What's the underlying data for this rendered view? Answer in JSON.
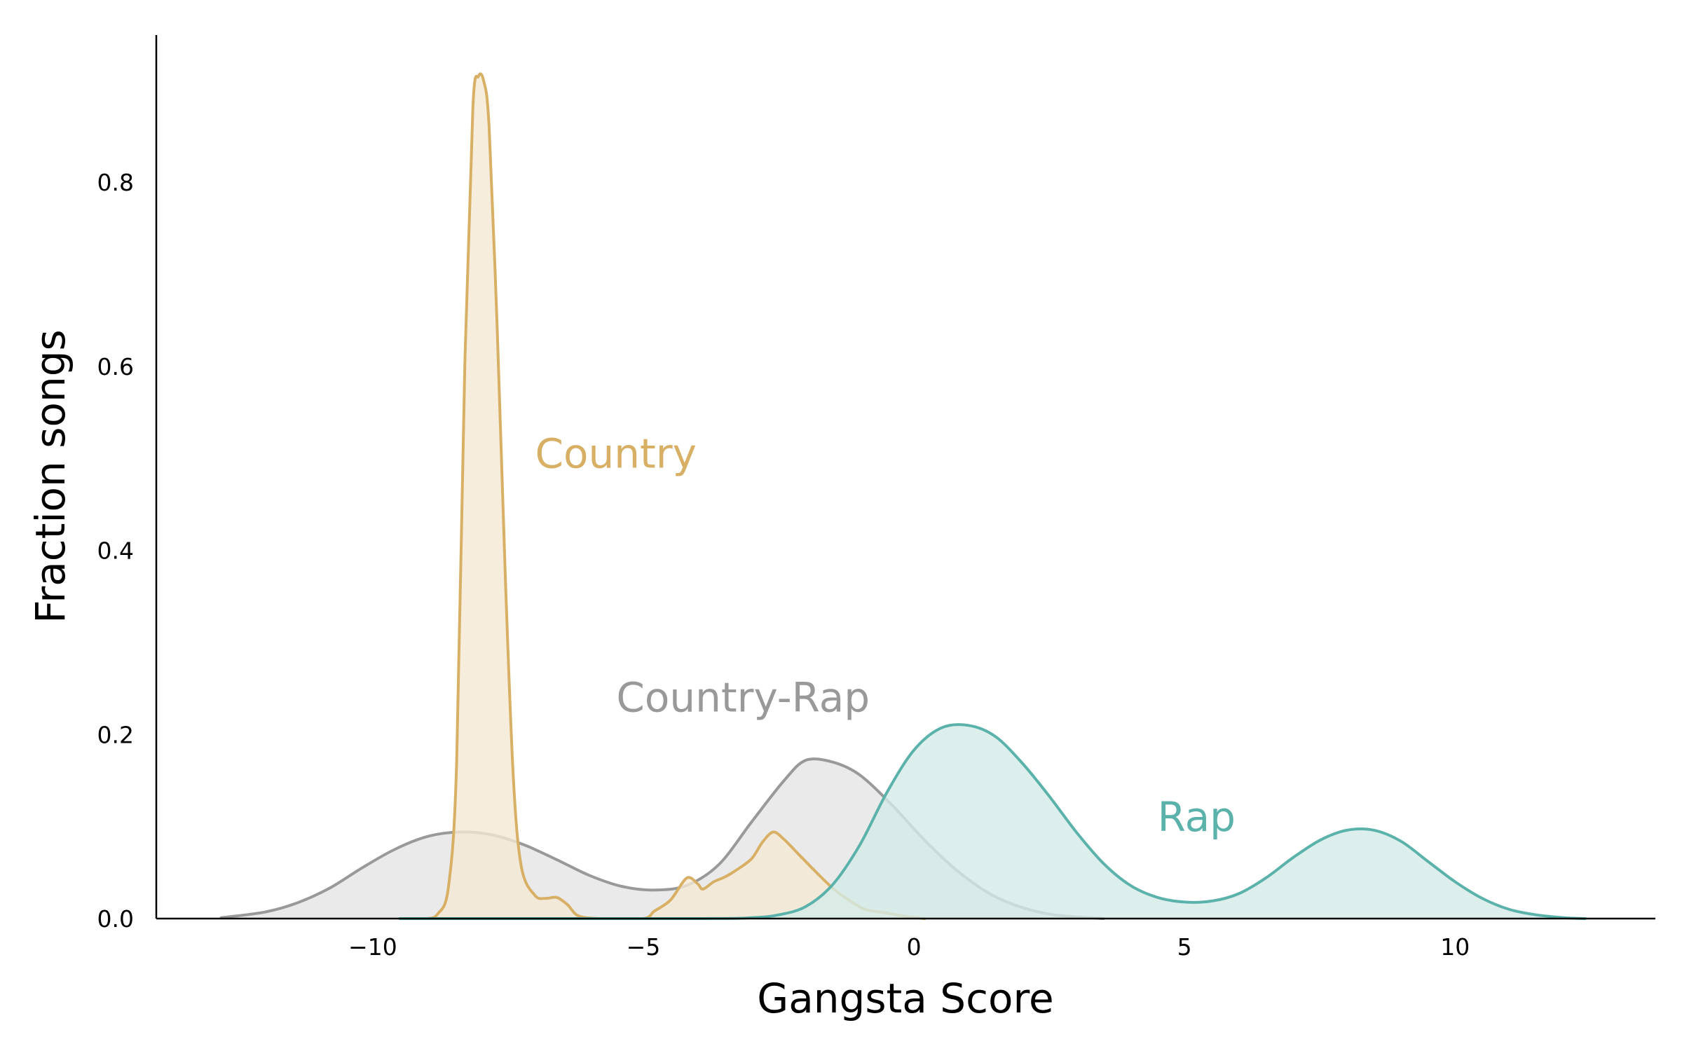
{
  "chart_data": {
    "type": "area",
    "title": "",
    "xlabel": "Gangsta Score",
    "ylabel": "Fraction songs",
    "xlim": [
      -14,
      13.7
    ],
    "ylim": [
      0,
      0.96
    ],
    "grid": false,
    "legend": "none",
    "x_ticks": [
      -10,
      -5,
      0,
      5,
      10
    ],
    "x_tick_labels": [
      "−10",
      "−5",
      "0",
      "5",
      "10"
    ],
    "y_ticks": [
      0.0,
      0.2,
      0.4,
      0.6,
      0.8
    ],
    "y_tick_labels": [
      "0.0",
      "0.2",
      "0.4",
      "0.6",
      "0.8"
    ],
    "series": [
      {
        "name": "Country-Rap",
        "color": "#999999",
        "fill": "#e5e5e5",
        "label_at": [
          -5.5,
          0.225
        ],
        "points": [
          [
            -12.8,
            0.001
          ],
          [
            -12.0,
            0.007
          ],
          [
            -11.4,
            0.017
          ],
          [
            -10.8,
            0.033
          ],
          [
            -10.2,
            0.055
          ],
          [
            -9.6,
            0.075
          ],
          [
            -9.0,
            0.089
          ],
          [
            -8.4,
            0.094
          ],
          [
            -7.8,
            0.091
          ],
          [
            -7.2,
            0.08
          ],
          [
            -6.6,
            0.064
          ],
          [
            -6.0,
            0.047
          ],
          [
            -5.4,
            0.035
          ],
          [
            -4.8,
            0.031
          ],
          [
            -4.2,
            0.036
          ],
          [
            -3.6,
            0.059
          ],
          [
            -3.0,
            0.105
          ],
          [
            -2.4,
            0.15
          ],
          [
            -2.0,
            0.172
          ],
          [
            -1.5,
            0.17
          ],
          [
            -1.0,
            0.156
          ],
          [
            -0.4,
            0.123
          ],
          [
            0.2,
            0.085
          ],
          [
            0.8,
            0.052
          ],
          [
            1.4,
            0.027
          ],
          [
            2.0,
            0.012
          ],
          [
            2.6,
            0.004
          ],
          [
            3.5,
            0.0
          ]
        ]
      },
      {
        "name": "Country",
        "color": "#d8b065",
        "fill": "#f5e9d4",
        "label_at": [
          -7.0,
          0.49
        ],
        "points": [
          [
            -9.4,
            0.0
          ],
          [
            -9.0,
            0.0
          ],
          [
            -8.8,
            0.005
          ],
          [
            -8.6,
            0.035
          ],
          [
            -8.45,
            0.17
          ],
          [
            -8.3,
            0.6
          ],
          [
            -8.15,
            0.88
          ],
          [
            -8.05,
            0.915
          ],
          [
            -7.95,
            0.91
          ],
          [
            -7.85,
            0.86
          ],
          [
            -7.7,
            0.64
          ],
          [
            -7.55,
            0.37
          ],
          [
            -7.4,
            0.15
          ],
          [
            -7.25,
            0.055
          ],
          [
            -7.0,
            0.025
          ],
          [
            -6.8,
            0.022
          ],
          [
            -6.6,
            0.023
          ],
          [
            -6.4,
            0.015
          ],
          [
            -6.2,
            0.003
          ],
          [
            -5.8,
            0.0
          ],
          [
            -5.0,
            0.0
          ],
          [
            -4.8,
            0.008
          ],
          [
            -4.5,
            0.02
          ],
          [
            -4.2,
            0.044
          ],
          [
            -4.0,
            0.038
          ],
          [
            -3.9,
            0.032
          ],
          [
            -3.7,
            0.04
          ],
          [
            -3.5,
            0.045
          ],
          [
            -3.3,
            0.052
          ],
          [
            -3.0,
            0.065
          ],
          [
            -2.8,
            0.083
          ],
          [
            -2.6,
            0.094
          ],
          [
            -2.4,
            0.086
          ],
          [
            -2.1,
            0.068
          ],
          [
            -1.8,
            0.05
          ],
          [
            -1.5,
            0.033
          ],
          [
            -1.2,
            0.02
          ],
          [
            -0.9,
            0.01
          ],
          [
            -0.5,
            0.006
          ],
          [
            -0.1,
            0.002
          ],
          [
            0.2,
            0.0
          ]
        ]
      },
      {
        "name": "Rap",
        "color": "#5ab2aa",
        "fill": "#d5ebe9",
        "label_at": [
          4.5,
          0.095
        ],
        "points": [
          [
            -9.5,
            0.0
          ],
          [
            -4.0,
            0.0
          ],
          [
            -3.0,
            0.001
          ],
          [
            -2.5,
            0.004
          ],
          [
            -2.0,
            0.013
          ],
          [
            -1.5,
            0.037
          ],
          [
            -1.0,
            0.08
          ],
          [
            -0.5,
            0.137
          ],
          [
            0.0,
            0.183
          ],
          [
            0.5,
            0.207
          ],
          [
            1.0,
            0.21
          ],
          [
            1.5,
            0.198
          ],
          [
            2.0,
            0.169
          ],
          [
            2.5,
            0.133
          ],
          [
            3.0,
            0.094
          ],
          [
            3.5,
            0.06
          ],
          [
            4.0,
            0.036
          ],
          [
            4.5,
            0.023
          ],
          [
            5.0,
            0.018
          ],
          [
            5.5,
            0.019
          ],
          [
            6.0,
            0.027
          ],
          [
            6.5,
            0.044
          ],
          [
            7.0,
            0.066
          ],
          [
            7.5,
            0.085
          ],
          [
            8.0,
            0.096
          ],
          [
            8.5,
            0.096
          ],
          [
            9.0,
            0.084
          ],
          [
            9.5,
            0.062
          ],
          [
            10.0,
            0.04
          ],
          [
            10.5,
            0.022
          ],
          [
            11.0,
            0.01
          ],
          [
            11.5,
            0.004
          ],
          [
            12.0,
            0.001
          ],
          [
            12.4,
            0.0
          ]
        ]
      }
    ]
  }
}
